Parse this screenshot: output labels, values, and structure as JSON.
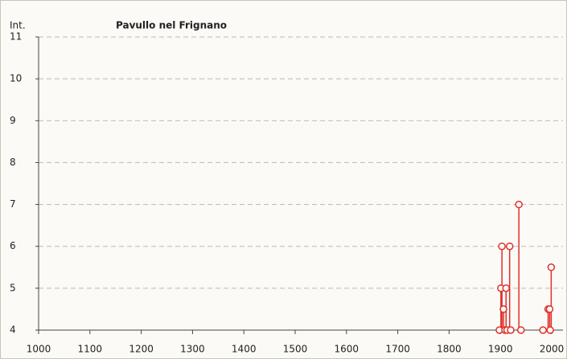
{
  "chart_data": {
    "type": "scatter",
    "title": "Pavullo nel Frignano",
    "ylabel": "Int.",
    "series": [
      {
        "name": "Intensity",
        "color": "#e0302a",
        "x": [
          1898,
          1901,
          1903,
          1906,
          1909,
          1911,
          1913,
          1918,
          1920,
          1936,
          1940,
          1983,
          1993,
          1996,
          1997,
          1999
        ],
        "values": [
          4,
          5,
          6,
          4.5,
          4,
          5,
          4,
          6,
          4,
          7,
          4,
          4,
          4.5,
          4.5,
          4,
          5.5
        ]
      }
    ],
    "xlim": [
      1000,
      2000
    ],
    "xticks": [
      1000,
      1100,
      1200,
      1300,
      1400,
      1500,
      1600,
      1700,
      1800,
      1900,
      2000
    ],
    "ylim": [
      4,
      11
    ],
    "yticks": [
      4,
      5,
      6,
      7,
      8,
      9,
      10,
      11
    ],
    "grid": true,
    "stems": true
  }
}
